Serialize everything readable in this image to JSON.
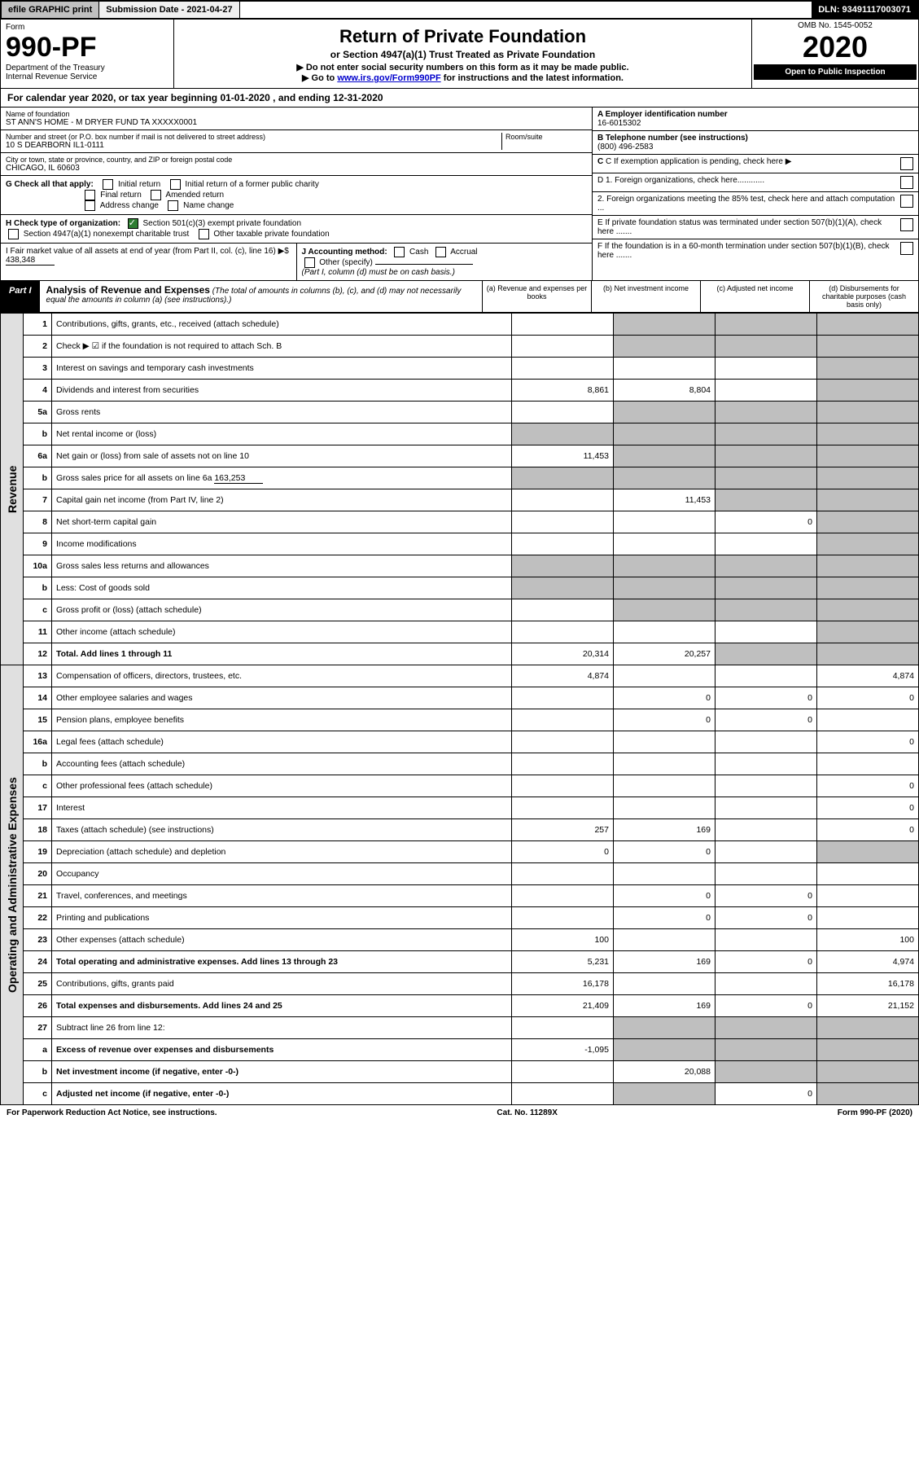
{
  "topbar": {
    "efile": "efile GRAPHIC print",
    "subdate": "Submission Date - 2021-04-27",
    "dln": "DLN: 93491117003071"
  },
  "header": {
    "form_word": "Form",
    "form_no": "990-PF",
    "dept": "Department of the Treasury",
    "irs": "Internal Revenue Service",
    "title": "Return of Private Foundation",
    "subtitle": "or Section 4947(a)(1) Trust Treated as Private Foundation",
    "note1": "▶ Do not enter social security numbers on this form as it may be made public.",
    "note2_pre": "▶ Go to ",
    "note2_link": "www.irs.gov/Form990PF",
    "note2_post": " for instructions and the latest information.",
    "omb": "OMB No. 1545-0052",
    "year": "2020",
    "open": "Open to Public Inspection"
  },
  "calyear": "For calendar year 2020, or tax year beginning 01-01-2020                           , and ending 12-31-2020",
  "name": {
    "label": "Name of foundation",
    "value": "ST ANN'S HOME - M DRYER FUND TA XXXXX0001"
  },
  "address": {
    "label": "Number and street (or P.O. box number if mail is not delivered to street address)",
    "room": "Room/suite",
    "value": "10 S DEARBORN IL1-0111"
  },
  "city": {
    "label": "City or town, state or province, country, and ZIP or foreign postal code",
    "value": "CHICAGO, IL  60603"
  },
  "ein": {
    "label": "A Employer identification number",
    "value": "16-6015302"
  },
  "phone": {
    "label": "B Telephone number (see instructions)",
    "value": "(800) 496-2583"
  },
  "c_label": "C If exemption application is pending, check here",
  "d1": "D 1. Foreign organizations, check here............",
  "d2": "2. Foreign organizations meeting the 85% test, check here and attach computation ...",
  "e_label": "E  If private foundation status was terminated under section 507(b)(1)(A), check here .......",
  "f_label": "F  If the foundation is in a 60-month termination under section 507(b)(1)(B), check here .......",
  "g": {
    "label": "G Check all that apply:",
    "initial": "Initial return",
    "initial_former": "Initial return of a former public charity",
    "final": "Final return",
    "amended": "Amended return",
    "addr": "Address change",
    "name": "Name change"
  },
  "h": {
    "label": "H Check type of organization:",
    "c3": "Section 501(c)(3) exempt private foundation",
    "trust": "Section 4947(a)(1) nonexempt charitable trust",
    "other": "Other taxable private foundation"
  },
  "i": {
    "label": "I Fair market value of all assets at end of year (from Part II, col. (c), line 16)",
    "arrow": "▶$",
    "value": "438,348"
  },
  "j": {
    "label": "J Accounting method:",
    "cash": "Cash",
    "accrual": "Accrual",
    "other": "Other (specify)",
    "note": "(Part I, column (d) must be on cash basis.)"
  },
  "part1": {
    "label": "Part I",
    "title": "Analysis of Revenue and Expenses",
    "title_note": "(The total of amounts in columns (b), (c), and (d) may not necessarily equal the amounts in column (a) (see instructions).)",
    "col_a": "(a)   Revenue and expenses per books",
    "col_b": "(b)  Net investment income",
    "col_c": "(c)  Adjusted net income",
    "col_d": "(d)  Disbursements for charitable purposes (cash basis only)"
  },
  "side_rev": "Revenue",
  "side_exp": "Operating and Administrative Expenses",
  "rows": {
    "r1": {
      "n": "1",
      "d": "Contributions, gifts, grants, etc., received (attach schedule)"
    },
    "r2": {
      "n": "2",
      "d": "Check ▶ ☑ if the foundation is not required to attach Sch. B"
    },
    "r3": {
      "n": "3",
      "d": "Interest on savings and temporary cash investments"
    },
    "r4": {
      "n": "4",
      "d": "Dividends and interest from securities",
      "a": "8,861",
      "b": "8,804"
    },
    "r5a": {
      "n": "5a",
      "d": "Gross rents"
    },
    "r5b": {
      "n": "b",
      "d": "Net rental income or (loss)"
    },
    "r6a": {
      "n": "6a",
      "d": "Net gain or (loss) from sale of assets not on line 10",
      "a": "11,453"
    },
    "r6b": {
      "n": "b",
      "d": "Gross sales price for all assets on line 6a",
      "inline": "163,253"
    },
    "r7": {
      "n": "7",
      "d": "Capital gain net income (from Part IV, line 2)",
      "b": "11,453"
    },
    "r8": {
      "n": "8",
      "d": "Net short-term capital gain",
      "c": "0"
    },
    "r9": {
      "n": "9",
      "d": "Income modifications"
    },
    "r10a": {
      "n": "10a",
      "d": "Gross sales less returns and allowances"
    },
    "r10b": {
      "n": "b",
      "d": "Less: Cost of goods sold"
    },
    "r10c": {
      "n": "c",
      "d": "Gross profit or (loss) (attach schedule)"
    },
    "r11": {
      "n": "11",
      "d": "Other income (attach schedule)"
    },
    "r12": {
      "n": "12",
      "d": "Total. Add lines 1 through 11",
      "a": "20,314",
      "b": "20,257"
    },
    "r13": {
      "n": "13",
      "d": "Compensation of officers, directors, trustees, etc.",
      "a": "4,874",
      "dd": "4,874"
    },
    "r14": {
      "n": "14",
      "d": "Other employee salaries and wages",
      "b": "0",
      "c": "0",
      "dd": "0"
    },
    "r15": {
      "n": "15",
      "d": "Pension plans, employee benefits",
      "b": "0",
      "c": "0"
    },
    "r16a": {
      "n": "16a",
      "d": "Legal fees (attach schedule)",
      "dd": "0"
    },
    "r16b": {
      "n": "b",
      "d": "Accounting fees (attach schedule)"
    },
    "r16c": {
      "n": "c",
      "d": "Other professional fees (attach schedule)",
      "dd": "0"
    },
    "r17": {
      "n": "17",
      "d": "Interest",
      "dd": "0"
    },
    "r18": {
      "n": "18",
      "d": "Taxes (attach schedule) (see instructions)",
      "a": "257",
      "b": "169",
      "dd": "0"
    },
    "r19": {
      "n": "19",
      "d": "Depreciation (attach schedule) and depletion",
      "a": "0",
      "b": "0"
    },
    "r20": {
      "n": "20",
      "d": "Occupancy"
    },
    "r21": {
      "n": "21",
      "d": "Travel, conferences, and meetings",
      "b": "0",
      "c": "0"
    },
    "r22": {
      "n": "22",
      "d": "Printing and publications",
      "b": "0",
      "c": "0"
    },
    "r23": {
      "n": "23",
      "d": "Other expenses (attach schedule)",
      "a": "100",
      "dd": "100"
    },
    "r24": {
      "n": "24",
      "d": "Total operating and administrative expenses. Add lines 13 through 23",
      "a": "5,231",
      "b": "169",
      "c": "0",
      "dd": "4,974"
    },
    "r25": {
      "n": "25",
      "d": "Contributions, gifts, grants paid",
      "a": "16,178",
      "dd": "16,178"
    },
    "r26": {
      "n": "26",
      "d": "Total expenses and disbursements. Add lines 24 and 25",
      "a": "21,409",
      "b": "169",
      "c": "0",
      "dd": "21,152"
    },
    "r27": {
      "n": "27",
      "d": "Subtract line 26 from line 12:"
    },
    "r27a": {
      "n": "a",
      "d": "Excess of revenue over expenses and disbursements",
      "a": "-1,095"
    },
    "r27b": {
      "n": "b",
      "d": "Net investment income (if negative, enter -0-)",
      "b": "20,088"
    },
    "r27c": {
      "n": "c",
      "d": "Adjusted net income (if negative, enter -0-)",
      "c": "0"
    }
  },
  "footer": {
    "left": "For Paperwork Reduction Act Notice, see instructions.",
    "mid": "Cat. No. 11289X",
    "right": "Form 990-PF (2020)"
  }
}
